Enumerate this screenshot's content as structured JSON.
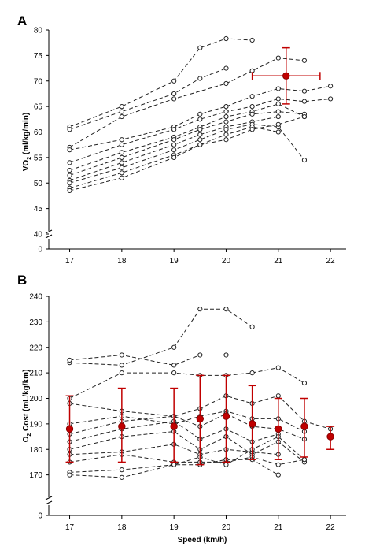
{
  "chart_data": [
    {
      "panel": "A",
      "type": "line",
      "xlabel": "Speed (km/h)",
      "ylabel": "VO2 (ml/kg/min)",
      "xlim": [
        16.6,
        22.3
      ],
      "ylim": [
        40,
        80
      ],
      "axis_break": true,
      "x_ticks": [
        "17",
        "18",
        "19",
        "20",
        "21",
        "22"
      ],
      "y_ticks": [
        "0",
        "40",
        "45",
        "50",
        "55",
        "60",
        "65",
        "70",
        "75",
        "80"
      ],
      "series": [
        {
          "x": [
            17,
            18,
            19,
            19.5,
            20,
            20.5
          ],
          "y": [
            61,
            65,
            70,
            76.5,
            78.3,
            78
          ]
        },
        {
          "x": [
            17,
            18,
            19,
            19.5,
            20
          ],
          "y": [
            60.5,
            64,
            67.5,
            70.5,
            72.5
          ]
        },
        {
          "x": [
            17,
            18,
            19,
            20,
            20.5,
            21,
            21.5
          ],
          "y": [
            57,
            63,
            66.5,
            69.5,
            72,
            74.5,
            74
          ]
        },
        {
          "x": [
            17,
            18,
            19,
            19.5,
            20,
            20.5,
            21,
            21.5,
            22
          ],
          "y": [
            56.5,
            58.5,
            61,
            63.5,
            65,
            67,
            68.5,
            68,
            69
          ]
        },
        {
          "x": [
            17,
            18,
            19,
            19.5,
            20,
            20.5,
            21,
            21.5,
            22
          ],
          "y": [
            54,
            57.5,
            60.5,
            62.5,
            64,
            65,
            66.5,
            66,
            66.5
          ]
        },
        {
          "x": [
            17,
            18,
            19,
            19.5,
            20,
            20.5,
            21,
            21.5
          ],
          "y": [
            52.5,
            56,
            59,
            61,
            63,
            64,
            65.5,
            63
          ]
        },
        {
          "x": [
            17,
            18,
            19,
            19.5,
            20,
            20.5,
            21,
            21.5
          ],
          "y": [
            51.5,
            55,
            58.5,
            60.5,
            62,
            63.5,
            64,
            63.5
          ]
        },
        {
          "x": [
            17,
            18,
            19,
            19.5,
            20,
            20.5,
            21
          ],
          "y": [
            50.5,
            54,
            57.5,
            59.5,
            61,
            62,
            63
          ]
        },
        {
          "x": [
            17,
            18,
            19,
            19.5,
            20,
            20.5,
            21,
            21.5
          ],
          "y": [
            50,
            53,
            56.5,
            58.5,
            60.5,
            61.5,
            61,
            54.5
          ]
        },
        {
          "x": [
            17,
            18,
            19,
            19.5,
            20,
            20.5,
            21
          ],
          "y": [
            49,
            52,
            55.5,
            57.5,
            59.5,
            61,
            60
          ]
        },
        {
          "x": [
            17,
            18,
            19,
            19.5,
            20,
            20.5,
            21,
            21.5
          ],
          "y": [
            48.5,
            51,
            55,
            57.5,
            58.5,
            60.5,
            61.5,
            63
          ]
        }
      ],
      "mean_points": [
        {
          "x": 21.15,
          "y": 71,
          "x_err": [
            20.5,
            21.8
          ],
          "y_err": [
            65.5,
            76.5
          ]
        }
      ]
    },
    {
      "panel": "B",
      "type": "line",
      "xlabel": "Speed (km/h)",
      "ylabel": "O2 Cost (mL/kg/km)",
      "xlim": [
        16.6,
        22.3
      ],
      "ylim": [
        160,
        240
      ],
      "axis_break": true,
      "x_ticks": [
        "17",
        "18",
        "19",
        "20",
        "21",
        "22"
      ],
      "y_ticks": [
        "0",
        "170",
        "180",
        "190",
        "200",
        "210",
        "220",
        "230",
        "240"
      ],
      "series": [
        {
          "x": [
            17,
            18,
            19,
            19.5,
            20,
            20.5
          ],
          "y": [
            214,
            213,
            220,
            235,
            235,
            228
          ]
        },
        {
          "x": [
            17,
            18,
            19,
            19.5,
            20
          ],
          "y": [
            215,
            217,
            213,
            217,
            217
          ]
        },
        {
          "x": [
            17,
            18,
            19,
            19.5,
            20,
            20.5,
            21,
            21.5
          ],
          "y": [
            200,
            210,
            210,
            209,
            209,
            210,
            212,
            206
          ]
        },
        {
          "x": [
            17,
            18,
            19,
            19.5,
            20,
            20.5,
            21,
            21.5,
            22
          ],
          "y": [
            198,
            195,
            193,
            196,
            201,
            198,
            201,
            191,
            188
          ]
        },
        {
          "x": [
            17,
            18,
            19,
            19.5,
            20,
            20.5,
            21,
            21.5
          ],
          "y": [
            190,
            193,
            190,
            193,
            195,
            192,
            192,
            187
          ]
        },
        {
          "x": [
            17,
            18,
            19,
            19.5,
            20,
            20.5,
            21,
            21.5
          ],
          "y": [
            186,
            191,
            193,
            189,
            194,
            189,
            188,
            184
          ]
        },
        {
          "x": [
            17,
            18,
            19,
            19.5,
            20,
            20.5,
            21
          ],
          "y": [
            183,
            188,
            191,
            184,
            188,
            183,
            186
          ]
        },
        {
          "x": [
            17,
            18,
            19,
            19.5,
            20,
            20.5,
            21,
            21.5
          ],
          "y": [
            180,
            185,
            187,
            180,
            185,
            178,
            183,
            175
          ]
        },
        {
          "x": [
            17,
            18,
            19,
            19.5,
            20,
            20.5,
            21
          ],
          "y": [
            178,
            179,
            182,
            178,
            180,
            179,
            178
          ]
        },
        {
          "x": [
            17,
            18,
            19,
            19.5,
            20,
            20.5,
            21,
            21.5
          ],
          "y": [
            175,
            178,
            175,
            175,
            175,
            177,
            174,
            176
          ]
        },
        {
          "x": [
            17,
            18,
            19,
            19.5,
            20,
            20.5,
            21
          ],
          "y": [
            171,
            172,
            174,
            174,
            176,
            176,
            170
          ]
        },
        {
          "x": [
            17,
            18,
            19,
            19.5,
            20,
            20.5,
            21,
            21.5
          ],
          "y": [
            170,
            169,
            174,
            177,
            174,
            180,
            185,
            176
          ]
        }
      ],
      "mean_points": [
        {
          "x": 17,
          "y": 188,
          "y_err": [
            175,
            201
          ]
        },
        {
          "x": 18,
          "y": 189,
          "y_err": [
            175,
            204
          ]
        },
        {
          "x": 19,
          "y": 189,
          "y_err": [
            175,
            204
          ]
        },
        {
          "x": 19.5,
          "y": 192,
          "y_err": [
            174,
            209
          ]
        },
        {
          "x": 20,
          "y": 193,
          "y_err": [
            175,
            209
          ]
        },
        {
          "x": 20.5,
          "y": 190,
          "y_err": [
            176,
            205
          ]
        },
        {
          "x": 21,
          "y": 188,
          "y_err": [
            176,
            200
          ]
        },
        {
          "x": 21.5,
          "y": 189,
          "y_err": [
            177,
            200
          ]
        },
        {
          "x": 22,
          "y": 185,
          "y_err": [
            180,
            189
          ]
        }
      ]
    }
  ],
  "colors": {
    "mean": "#c00000",
    "series": "#222222"
  }
}
